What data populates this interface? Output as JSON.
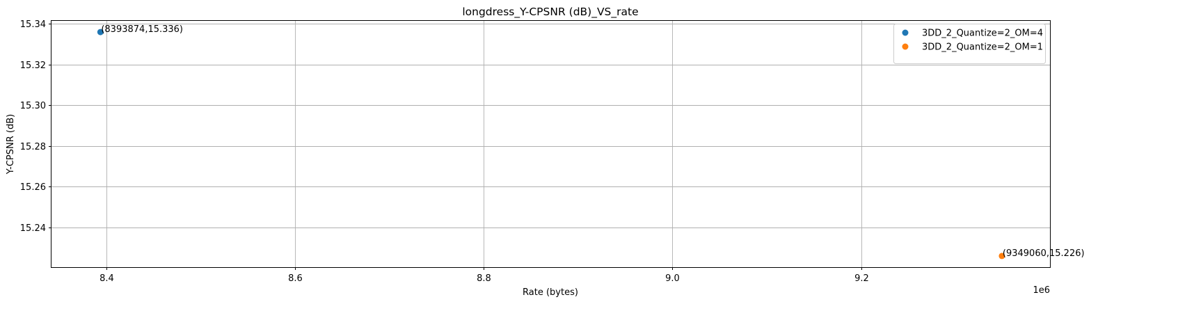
{
  "chart_data": {
    "type": "scatter",
    "title": "longdress_Y-CPSNR (dB)_VS_rate",
    "xlabel": "Rate (bytes)",
    "ylabel": "Y-CPSNR (dB)",
    "x_offset_label": "1e6",
    "xlim": [
      8342000,
      9400000
    ],
    "ylim": [
      15.2205,
      15.3415
    ],
    "xticks": [
      8400000,
      8600000,
      8800000,
      9000000,
      9200000
    ],
    "xtick_labels": [
      "8.4",
      "8.6",
      "8.8",
      "9.0",
      "9.2"
    ],
    "yticks": [
      15.24,
      15.26,
      15.28,
      15.3,
      15.32,
      15.34
    ],
    "ytick_labels": [
      "15.24",
      "15.26",
      "15.28",
      "15.30",
      "15.32",
      "15.34"
    ],
    "grid": true,
    "legend_position": "upper-right",
    "series": [
      {
        "name": "3DD_2_Quantize=2_OM=4",
        "color": "#1f77b4",
        "points": [
          {
            "x": 8393874,
            "y": 15.336,
            "label": "(8393874,15.336)"
          }
        ]
      },
      {
        "name": "3DD_2_Quantize=2_OM=1",
        "color": "#ff7f0e",
        "points": [
          {
            "x": 9349060,
            "y": 15.226,
            "label": "(9349060,15.226)"
          }
        ]
      }
    ]
  }
}
